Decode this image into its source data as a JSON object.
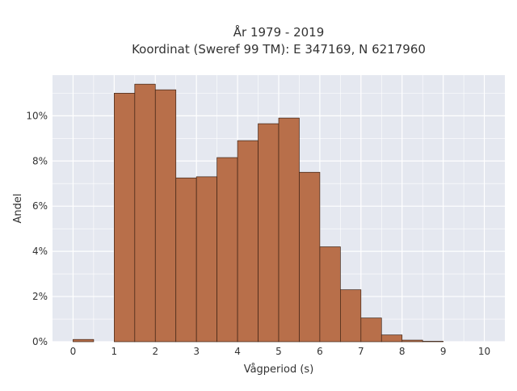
{
  "chart_data": {
    "type": "bar",
    "title_line1": "År 1979 - 2019",
    "title_line2": "Koordinat (Sweref 99 TM): E 347169, N 6217960",
    "xlabel": "Vågperiod (s)",
    "ylabel": "Andel",
    "x_ticks": [
      "0",
      "1",
      "2",
      "3",
      "4",
      "5",
      "6",
      "7",
      "8",
      "9",
      "10"
    ],
    "y_ticks": [
      "0%",
      "2%",
      "4%",
      "6%",
      "8%",
      "10%"
    ],
    "xlim": [
      -0.5,
      10.5
    ],
    "ylim": [
      0,
      11.8
    ],
    "bin_width": 0.5,
    "bins": [
      {
        "x0": 0.0,
        "value": 0.1
      },
      {
        "x0": 1.0,
        "value": 11.0
      },
      {
        "x0": 1.5,
        "value": 11.4
      },
      {
        "x0": 2.0,
        "value": 11.15
      },
      {
        "x0": 2.5,
        "value": 7.25
      },
      {
        "x0": 3.0,
        "value": 7.3
      },
      {
        "x0": 3.5,
        "value": 8.15
      },
      {
        "x0": 4.0,
        "value": 8.9
      },
      {
        "x0": 4.5,
        "value": 9.65
      },
      {
        "x0": 5.0,
        "value": 9.9
      },
      {
        "x0": 5.5,
        "value": 7.5
      },
      {
        "x0": 6.0,
        "value": 4.2
      },
      {
        "x0": 6.5,
        "value": 2.3
      },
      {
        "x0": 7.0,
        "value": 1.05
      },
      {
        "x0": 7.5,
        "value": 0.3
      },
      {
        "x0": 8.0,
        "value": 0.07
      },
      {
        "x0": 8.5,
        "value": 0.02
      }
    ],
    "colors": {
      "bar_fill": "#b86f4a",
      "bar_stroke": "#3d2214",
      "plot_bg": "#e5e8f0",
      "grid": "#ffffff"
    }
  }
}
